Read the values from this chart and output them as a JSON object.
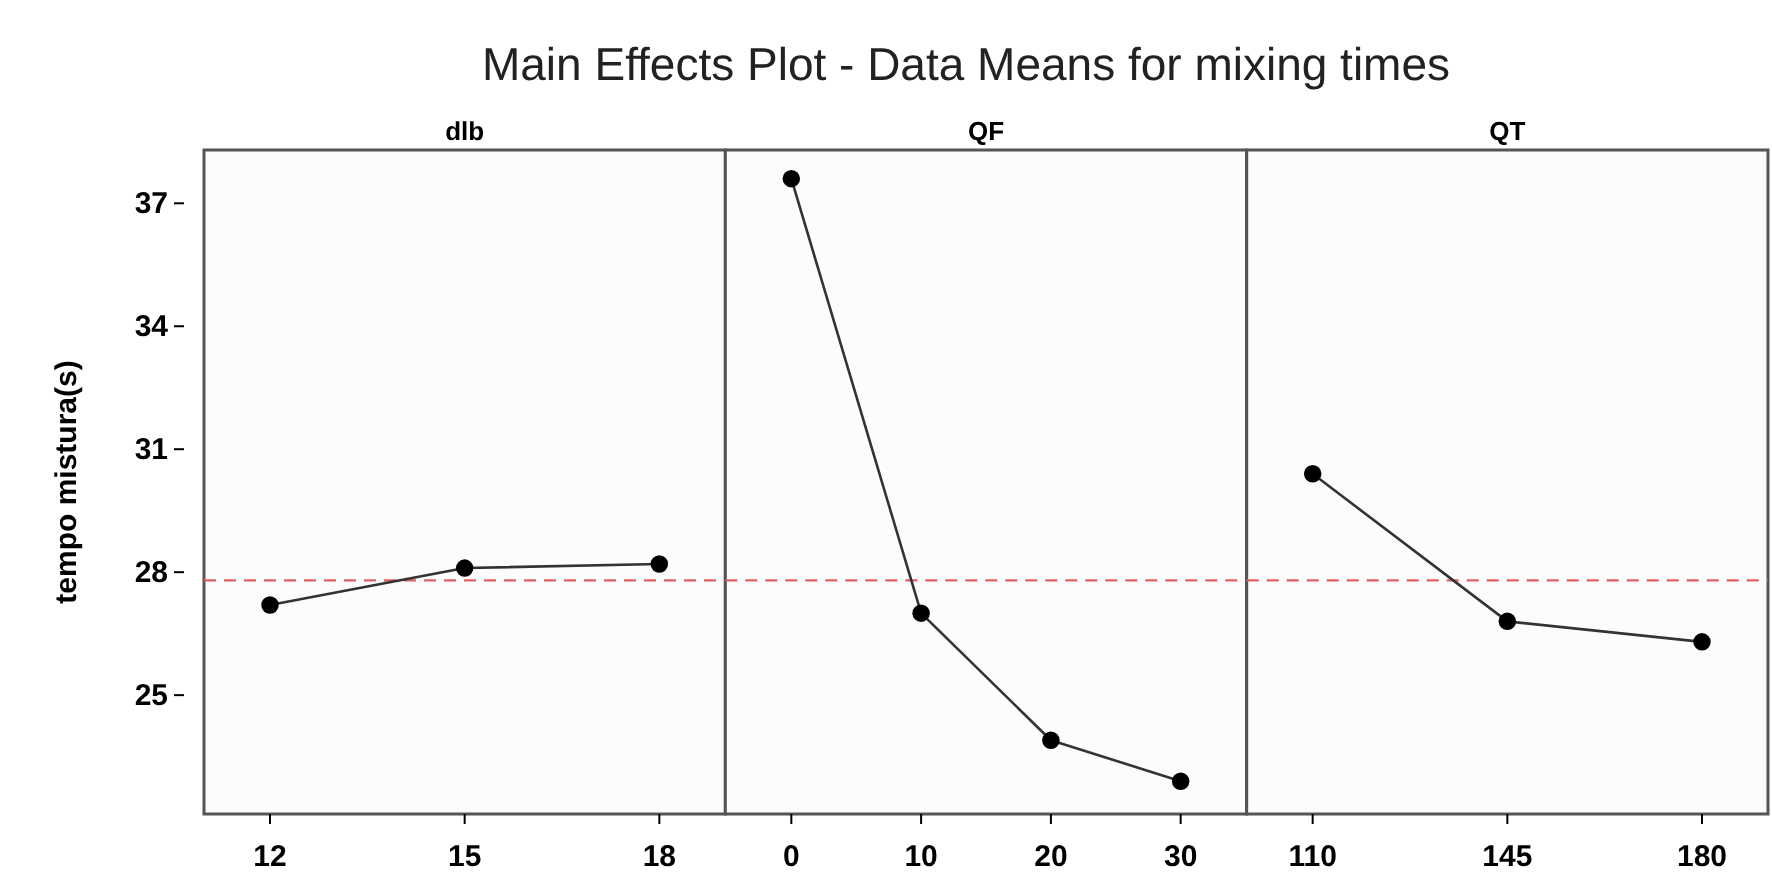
{
  "chart_data": [
    {
      "type": "line",
      "title": "dlb",
      "ylabel": "tempo mistura(s)",
      "annotations": [
        "Main Effects Plot - Data Means for mixing times"
      ],
      "categories": [
        "12",
        "15",
        "18"
      ],
      "series": [
        {
          "color": "#333333",
          "values": [
            27.2,
            28.1,
            28.2
          ]
        }
      ],
      "ylim": [
        22.1,
        38.3
      ],
      "yticks": [
        25,
        28,
        31,
        34,
        37
      ],
      "ref_lines": [
        {
          "axis": "y",
          "value": 27.8,
          "color": "#e06060",
          "line_style": "dashed"
        }
      ],
      "marker": "circle",
      "grid": false
    },
    {
      "type": "line",
      "title": "QF",
      "categories": [
        "0",
        "10",
        "20",
        "30"
      ],
      "series": [
        {
          "color": "#333333",
          "values": [
            37.6,
            27.0,
            23.9,
            22.9
          ]
        }
      ],
      "ylim": [
        22.1,
        38.3
      ],
      "tick_labels": "x",
      "ref_lines": [
        {
          "axis": "y",
          "value": 27.8,
          "color": "#e06060",
          "line_style": "dashed"
        }
      ],
      "marker": "circle",
      "grid": false
    },
    {
      "type": "line",
      "title": "QT",
      "categories": [
        "110",
        "145",
        "180"
      ],
      "series": [
        {
          "color": "#333333",
          "values": [
            30.4,
            26.8,
            26.3
          ]
        }
      ],
      "ylim": [
        22.1,
        38.3
      ],
      "tick_labels": "x",
      "ref_lines": [
        {
          "axis": "y",
          "value": 27.8,
          "color": "#e06060",
          "line_style": "dashed"
        }
      ],
      "marker": "circle",
      "grid": false
    }
  ]
}
